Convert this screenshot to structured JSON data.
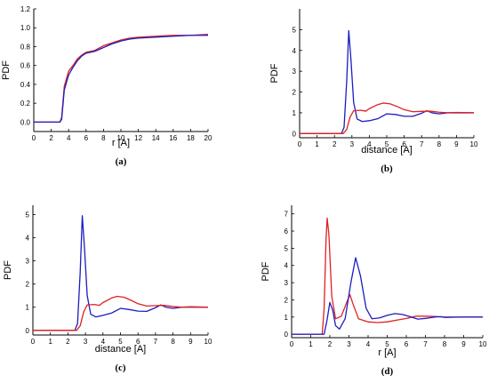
{
  "colors": {
    "red": "#e02020",
    "blue": "#1c1cc0"
  },
  "chart_data": [
    {
      "type": "line",
      "panel_label": "(a)",
      "xlabel": "r [A]",
      "ylabel": "PDF",
      "xlim": [
        0,
        20
      ],
      "ylim": [
        -0.1,
        1.2
      ],
      "xticks": [
        "0",
        "2",
        "4",
        "6",
        "8",
        "10",
        "12",
        "14",
        "16",
        "18",
        "20"
      ],
      "yticks": [
        "0.0",
        "0.2",
        "0.4",
        "0.6",
        "0.8",
        "1.0",
        "1.2"
      ],
      "series": [
        {
          "color": "red",
          "points": [
            [
              0,
              0
            ],
            [
              3.0,
              0
            ],
            [
              3.2,
              0.05
            ],
            [
              3.5,
              0.38
            ],
            [
              4.0,
              0.54
            ],
            [
              4.5,
              0.6
            ],
            [
              5.0,
              0.67
            ],
            [
              5.5,
              0.71
            ],
            [
              6.0,
              0.74
            ],
            [
              7.0,
              0.76
            ],
            [
              8.0,
              0.81
            ],
            [
              9.0,
              0.84
            ],
            [
              10.0,
              0.87
            ],
            [
              11.0,
              0.89
            ],
            [
              12.0,
              0.9
            ],
            [
              14.0,
              0.91
            ],
            [
              16.0,
              0.92
            ],
            [
              18.0,
              0.92
            ],
            [
              20.0,
              0.93
            ]
          ]
        },
        {
          "color": "blue",
          "points": [
            [
              0,
              0
            ],
            [
              3.0,
              0
            ],
            [
              3.2,
              0.03
            ],
            [
              3.5,
              0.34
            ],
            [
              4.0,
              0.5
            ],
            [
              4.5,
              0.58
            ],
            [
              5.0,
              0.65
            ],
            [
              5.5,
              0.7
            ],
            [
              6.0,
              0.73
            ],
            [
              7.0,
              0.75
            ],
            [
              8.0,
              0.79
            ],
            [
              9.0,
              0.83
            ],
            [
              10.0,
              0.86
            ],
            [
              11.0,
              0.88
            ],
            [
              12.0,
              0.89
            ],
            [
              14.0,
              0.9
            ],
            [
              16.0,
              0.91
            ],
            [
              18.0,
              0.92
            ],
            [
              20.0,
              0.92
            ]
          ]
        }
      ]
    },
    {
      "type": "line",
      "panel_label": "(b)",
      "xlabel": "distance [A]",
      "ylabel": "PDF",
      "xlim": [
        0,
        10
      ],
      "ylim": [
        -0.2,
        6
      ],
      "xticks": [
        "0",
        "1",
        "2",
        "3",
        "4",
        "5",
        "6",
        "7",
        "8",
        "9",
        "10"
      ],
      "yticks": [
        "0",
        "1",
        "2",
        "3",
        "4",
        "5"
      ],
      "series": [
        {
          "color": "blue",
          "points": [
            [
              0,
              0
            ],
            [
              2.4,
              0
            ],
            [
              2.55,
              0.3
            ],
            [
              2.7,
              2.5
            ],
            [
              2.82,
              4.95
            ],
            [
              2.95,
              3.5
            ],
            [
              3.1,
              1.5
            ],
            [
              3.3,
              0.7
            ],
            [
              3.6,
              0.58
            ],
            [
              4.0,
              0.62
            ],
            [
              4.5,
              0.72
            ],
            [
              5.0,
              0.95
            ],
            [
              5.5,
              0.92
            ],
            [
              6.0,
              0.83
            ],
            [
              6.5,
              0.83
            ],
            [
              7.0,
              0.98
            ],
            [
              7.3,
              1.1
            ],
            [
              7.6,
              1.0
            ],
            [
              8.0,
              0.95
            ],
            [
              8.5,
              1.0
            ],
            [
              9.0,
              1.0
            ],
            [
              10,
              1.0
            ]
          ]
        },
        {
          "color": "red",
          "points": [
            [
              0,
              0
            ],
            [
              2.5,
              0
            ],
            [
              2.7,
              0.2
            ],
            [
              2.9,
              0.8
            ],
            [
              3.1,
              1.1
            ],
            [
              3.5,
              1.12
            ],
            [
              3.8,
              1.08
            ],
            [
              4.0,
              1.2
            ],
            [
              4.5,
              1.4
            ],
            [
              4.8,
              1.47
            ],
            [
              5.2,
              1.43
            ],
            [
              5.6,
              1.3
            ],
            [
              6.0,
              1.15
            ],
            [
              6.5,
              1.05
            ],
            [
              7.0,
              1.07
            ],
            [
              7.5,
              1.08
            ],
            [
              8.0,
              1.03
            ],
            [
              8.5,
              1.0
            ],
            [
              9.0,
              1.02
            ],
            [
              10,
              1.0
            ]
          ]
        }
      ]
    },
    {
      "type": "line",
      "panel_label": "(c)",
      "xlabel": "distance [A]",
      "ylabel": "PDF",
      "xlim": [
        0,
        10
      ],
      "ylim": [
        -0.2,
        5.4
      ],
      "xticks": [
        "0",
        "1",
        "2",
        "3",
        "4",
        "5",
        "6",
        "7",
        "8",
        "9",
        "10"
      ],
      "yticks": [
        "0",
        "1",
        "2",
        "3",
        "4",
        "5"
      ],
      "series": [
        {
          "color": "blue",
          "points": [
            [
              0,
              0
            ],
            [
              2.4,
              0
            ],
            [
              2.55,
              0.3
            ],
            [
              2.7,
              2.5
            ],
            [
              2.82,
              4.95
            ],
            [
              2.95,
              3.5
            ],
            [
              3.1,
              1.5
            ],
            [
              3.3,
              0.7
            ],
            [
              3.6,
              0.58
            ],
            [
              4.0,
              0.65
            ],
            [
              4.5,
              0.75
            ],
            [
              5.0,
              0.95
            ],
            [
              5.5,
              0.9
            ],
            [
              6.0,
              0.83
            ],
            [
              6.5,
              0.82
            ],
            [
              7.0,
              0.98
            ],
            [
              7.3,
              1.1
            ],
            [
              7.6,
              1.0
            ],
            [
              8.0,
              0.95
            ],
            [
              8.5,
              1.0
            ],
            [
              9.0,
              1.0
            ],
            [
              10,
              1.0
            ]
          ]
        },
        {
          "color": "red",
          "points": [
            [
              0,
              0
            ],
            [
              2.5,
              0
            ],
            [
              2.7,
              0.2
            ],
            [
              2.9,
              0.8
            ],
            [
              3.1,
              1.1
            ],
            [
              3.5,
              1.12
            ],
            [
              3.8,
              1.08
            ],
            [
              4.0,
              1.2
            ],
            [
              4.5,
              1.4
            ],
            [
              4.8,
              1.47
            ],
            [
              5.2,
              1.43
            ],
            [
              5.6,
              1.3
            ],
            [
              6.0,
              1.15
            ],
            [
              6.5,
              1.05
            ],
            [
              7.0,
              1.07
            ],
            [
              7.5,
              1.08
            ],
            [
              8.0,
              1.03
            ],
            [
              8.5,
              1.0
            ],
            [
              9.0,
              1.02
            ],
            [
              10,
              1.0
            ]
          ]
        }
      ]
    },
    {
      "type": "line",
      "panel_label": "(d)",
      "xlabel": "r [A]",
      "ylabel": "PDF",
      "xlim": [
        0,
        10
      ],
      "ylim": [
        -0.2,
        7.5
      ],
      "xticks": [
        "0",
        "1",
        "2",
        "3",
        "4",
        "5",
        "6",
        "7",
        "8",
        "9",
        "10"
      ],
      "yticks": [
        "0",
        "1",
        "2",
        "3",
        "4",
        "5",
        "6",
        "7"
      ],
      "series": [
        {
          "color": "red",
          "points": [
            [
              0,
              0
            ],
            [
              1.6,
              0
            ],
            [
              1.7,
              1.5
            ],
            [
              1.8,
              5.5
            ],
            [
              1.86,
              6.75
            ],
            [
              1.95,
              5.8
            ],
            [
              2.1,
              2.2
            ],
            [
              2.3,
              0.9
            ],
            [
              2.6,
              1.05
            ],
            [
              2.9,
              1.9
            ],
            [
              3.05,
              2.3
            ],
            [
              3.2,
              1.8
            ],
            [
              3.5,
              0.9
            ],
            [
              4.0,
              0.72
            ],
            [
              4.5,
              0.68
            ],
            [
              5.0,
              0.72
            ],
            [
              5.5,
              0.82
            ],
            [
              6.0,
              0.92
            ],
            [
              6.5,
              1.05
            ],
            [
              7.0,
              1.05
            ],
            [
              7.5,
              1.03
            ],
            [
              8.0,
              1.0
            ],
            [
              9.0,
              1.0
            ],
            [
              10,
              1.0
            ]
          ]
        },
        {
          "color": "blue",
          "points": [
            [
              0,
              0
            ],
            [
              1.7,
              0
            ],
            [
              1.85,
              0.8
            ],
            [
              2.0,
              1.85
            ],
            [
              2.15,
              1.4
            ],
            [
              2.3,
              0.5
            ],
            [
              2.5,
              0.3
            ],
            [
              2.8,
              0.9
            ],
            [
              3.1,
              3.0
            ],
            [
              3.35,
              4.45
            ],
            [
              3.6,
              3.4
            ],
            [
              3.9,
              1.5
            ],
            [
              4.2,
              0.9
            ],
            [
              4.6,
              0.95
            ],
            [
              5.0,
              1.1
            ],
            [
              5.4,
              1.2
            ],
            [
              5.8,
              1.15
            ],
            [
              6.2,
              1.02
            ],
            [
              6.6,
              0.88
            ],
            [
              7.0,
              0.92
            ],
            [
              7.5,
              1.0
            ],
            [
              7.8,
              1.02
            ],
            [
              8.0,
              0.98
            ],
            [
              9.0,
              1.0
            ],
            [
              10,
              1.0
            ]
          ]
        }
      ]
    }
  ]
}
